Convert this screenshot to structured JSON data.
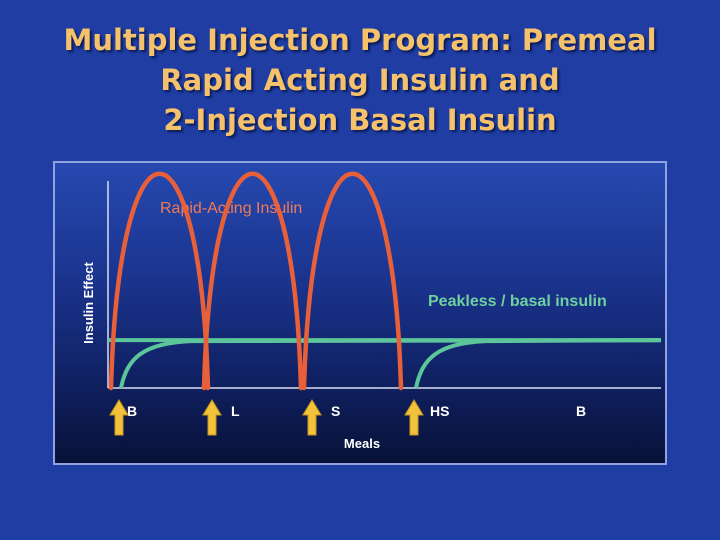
{
  "slide": {
    "title_lines": [
      "Multiple Injection Program: Premeal",
      "Rapid Acting Insulin and",
      "2-Injection Basal Insulin"
    ]
  },
  "chart_data": {
    "type": "line",
    "ylabel": "Insulin Effect",
    "xlabel": "Meals",
    "x_ticks": [
      "B",
      "L",
      "S",
      "HS",
      "B"
    ],
    "injection_markers": [
      "B",
      "L",
      "S",
      "HS"
    ],
    "series": [
      {
        "name": "Rapid-Acting Insulin",
        "color": "#e8603a",
        "peaks": [
          {
            "start": "B",
            "peak_level": 0.92
          },
          {
            "start": "L",
            "peak_level": 0.92
          },
          {
            "start": "S",
            "peak_level": 0.92
          }
        ]
      },
      {
        "name": "Peakless / basal insulin",
        "color": "#5cc59a",
        "level": 0.29,
        "injections": [
          "B",
          "HS"
        ]
      }
    ],
    "colors": {
      "arrow": "#f2c23a",
      "background": "#1f3da3"
    }
  }
}
